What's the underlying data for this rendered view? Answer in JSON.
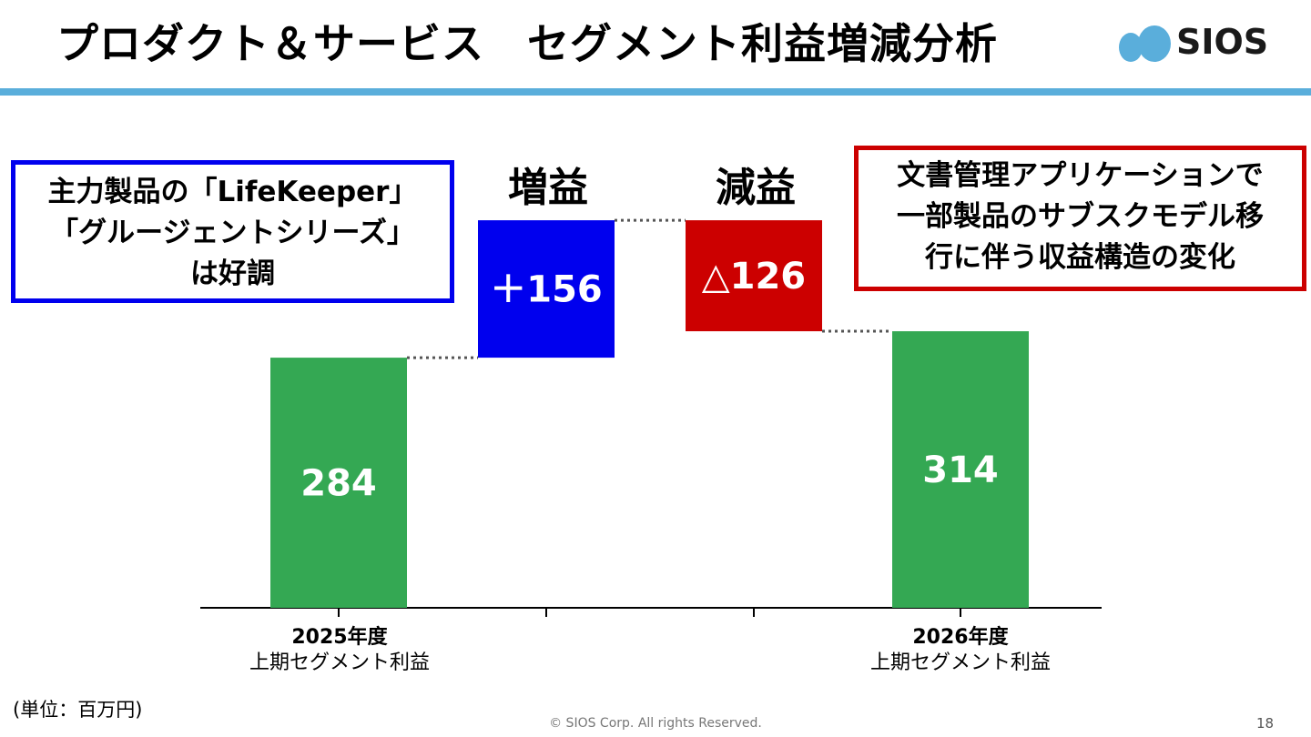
{
  "header": {
    "title": "プロダクト＆サービス　セグメント利益増減分析",
    "logo_text": "SIOS",
    "logo_color": "#5aaedb"
  },
  "chart_data": {
    "type": "bar",
    "variant": "waterfall",
    "categories": [
      "2025年度 上期セグメント利益",
      "増益",
      "減益",
      "2026年度 上期セグメント利益"
    ],
    "values": [
      284,
      156,
      -126,
      314
    ],
    "data_labels": [
      "284",
      "＋156",
      "△126",
      "314"
    ],
    "ylim": [
      0,
      500
    ],
    "grid": false,
    "colors": {
      "total": "#34a853",
      "increase": "#0000ee",
      "decrease": "#cc0000"
    }
  },
  "labels": {
    "cat1_line1": "2025年度",
    "cat1_line2": "上期セグメント利益",
    "cat4_line1": "2026年度",
    "cat4_line2": "上期セグメント利益",
    "increase_head": "増益",
    "decrease_head": "減益"
  },
  "callouts": {
    "left": [
      "主力製品の「LifeKeeper」",
      "「グルージェントシリーズ」",
      "は好調"
    ],
    "right": [
      "文書管理アプリケーションで",
      "一部製品のサブスクモデル移",
      "行に伴う収益構造の変化"
    ]
  },
  "footer": {
    "unit": "(単位：百万円)",
    "copyright": "© SIOS Corp. All rights Reserved.",
    "page": "18"
  }
}
